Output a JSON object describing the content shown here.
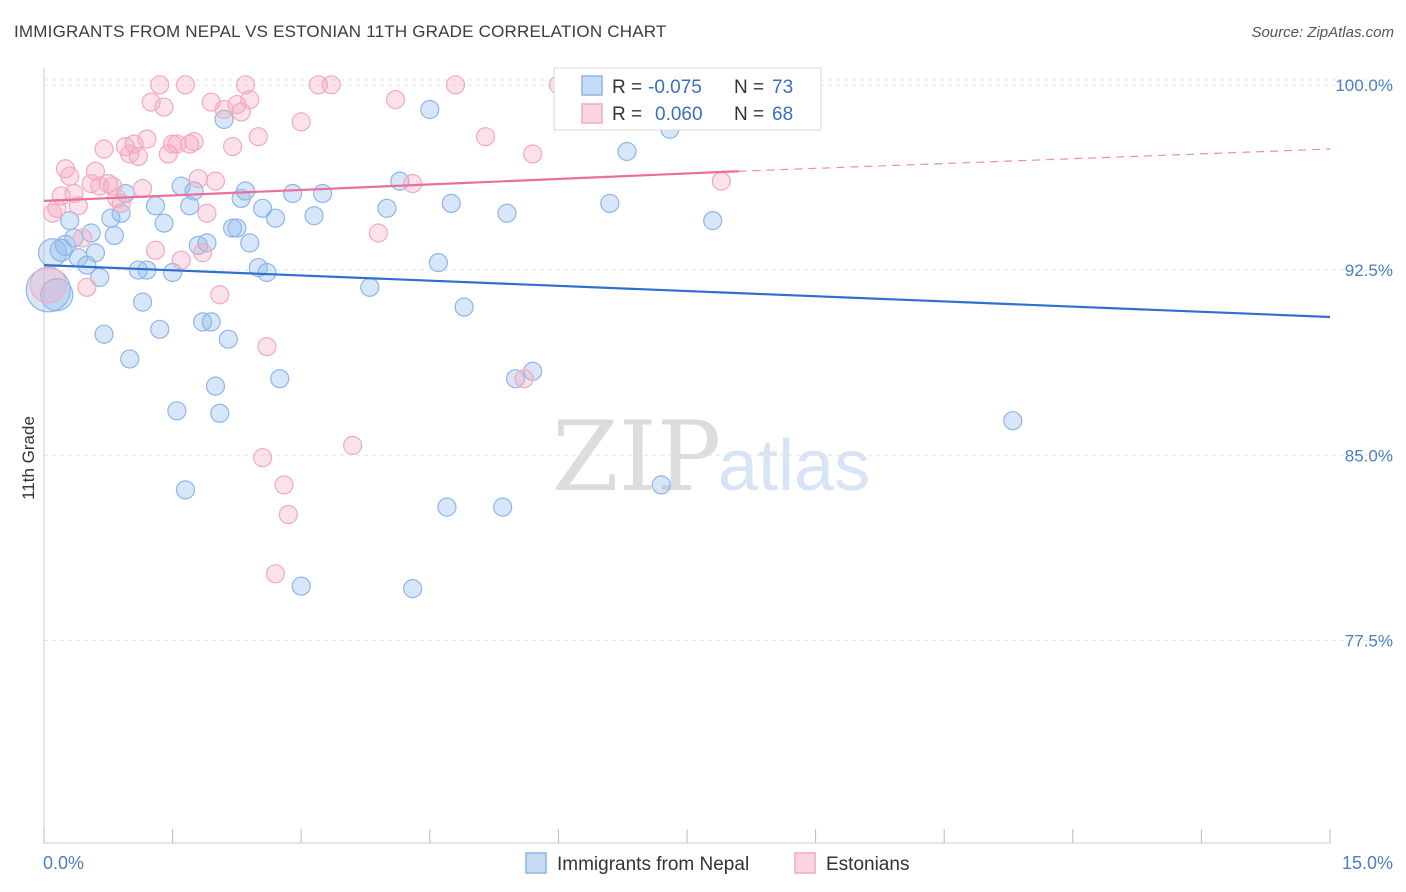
{
  "header": {
    "title": "IMMIGRANTS FROM NEPAL VS ESTONIAN 11TH GRADE CORRELATION CHART",
    "source": "Source: ZipAtlas.com"
  },
  "watermark": {
    "zip": "ZIP",
    "atlas": "atlas"
  },
  "legend": {
    "r_label": "R =",
    "n_label": "N =",
    "rows": [
      {
        "r": "-0.075",
        "n": "73",
        "color": "#8db6ea"
      },
      {
        "r": "0.060",
        "n": "68",
        "color": "#f4a9c0"
      }
    ]
  },
  "bottom_legend": [
    {
      "label": "Immigrants from Nepal",
      "color": "#8db6ea"
    },
    {
      "label": "Estonians",
      "color": "#f4a9c0"
    }
  ],
  "chart_data": {
    "type": "scatter",
    "title": "IMMIGRANTS FROM NEPAL VS ESTONIAN 11TH GRADE CORRELATION CHART",
    "xlabel": "",
    "ylabel": "11th Grade",
    "xlim": [
      0,
      15
    ],
    "ylim": [
      69.3,
      100.6
    ],
    "x_tick_labels": [
      "0.0%",
      "15.0%"
    ],
    "y_ticks": [
      77.5,
      85.0,
      92.5,
      100.0
    ],
    "y_tick_labels": [
      "77.5%",
      "85.0%",
      "92.5%",
      "100.0%"
    ],
    "grid": "horizontal dashed",
    "legend_position": "top-center",
    "series": [
      {
        "name": "Immigrants from Nepal",
        "color": "#8db6ea",
        "line_color": "#2f6fce",
        "trend": {
          "x": [
            0,
            15
          ],
          "y": [
            92.7,
            90.6
          ]
        },
        "points": [
          [
            0.05,
            91.7,
            22
          ],
          [
            0.1,
            93.2,
            14
          ],
          [
            0.15,
            91.5,
            16
          ],
          [
            0.2,
            93.3,
            11
          ],
          [
            0.25,
            93.5,
            10
          ],
          [
            0.3,
            94.5,
            9
          ],
          [
            0.35,
            93.8,
            9
          ],
          [
            0.4,
            93.0,
            9
          ],
          [
            0.5,
            92.7,
            9
          ],
          [
            0.55,
            94.0,
            9
          ],
          [
            0.6,
            93.2,
            9
          ],
          [
            0.65,
            92.2,
            9
          ],
          [
            0.7,
            89.9,
            9
          ],
          [
            0.78,
            94.6,
            9
          ],
          [
            0.82,
            93.9,
            9
          ],
          [
            0.9,
            94.8,
            9
          ],
          [
            0.95,
            95.6,
            9
          ],
          [
            1.0,
            88.9,
            9
          ],
          [
            1.1,
            92.5,
            9
          ],
          [
            1.15,
            91.2,
            9
          ],
          [
            1.2,
            92.5,
            9
          ],
          [
            1.3,
            95.1,
            9
          ],
          [
            1.35,
            90.1,
            9
          ],
          [
            1.4,
            94.4,
            9
          ],
          [
            1.5,
            92.4,
            9
          ],
          [
            1.55,
            86.8,
            9
          ],
          [
            1.6,
            95.9,
            9
          ],
          [
            1.65,
            83.6,
            9
          ],
          [
            1.7,
            95.1,
            9
          ],
          [
            1.75,
            95.7,
            9
          ],
          [
            1.8,
            93.5,
            9
          ],
          [
            1.85,
            90.4,
            9
          ],
          [
            1.9,
            93.6,
            9
          ],
          [
            1.95,
            90.4,
            9
          ],
          [
            2.0,
            87.8,
            9
          ],
          [
            2.05,
            86.7,
            9
          ],
          [
            2.1,
            98.6,
            9
          ],
          [
            2.15,
            89.7,
            9
          ],
          [
            2.2,
            94.2,
            9
          ],
          [
            2.25,
            94.2,
            9
          ],
          [
            2.3,
            95.4,
            9
          ],
          [
            2.35,
            95.7,
            9
          ],
          [
            2.4,
            93.6,
            9
          ],
          [
            2.5,
            92.6,
            9
          ],
          [
            2.55,
            95.0,
            9
          ],
          [
            2.6,
            92.4,
            9
          ],
          [
            2.7,
            94.6,
            9
          ],
          [
            2.75,
            88.1,
            9
          ],
          [
            2.9,
            95.6,
            9
          ],
          [
            3.0,
            79.7,
            9
          ],
          [
            3.15,
            94.7,
            9
          ],
          [
            3.25,
            95.6,
            9
          ],
          [
            3.8,
            91.8,
            9
          ],
          [
            4.0,
            95.0,
            9
          ],
          [
            4.15,
            96.1,
            9
          ],
          [
            4.3,
            79.6,
            9
          ],
          [
            4.5,
            99.0,
            9
          ],
          [
            4.6,
            92.8,
            9
          ],
          [
            4.7,
            82.9,
            9
          ],
          [
            4.75,
            95.2,
            9
          ],
          [
            4.9,
            91.0,
            9
          ],
          [
            5.35,
            82.9,
            9
          ],
          [
            5.4,
            94.8,
            9
          ],
          [
            5.5,
            88.1,
            9
          ],
          [
            5.7,
            88.4,
            9
          ],
          [
            6.35,
            98.9,
            9
          ],
          [
            6.6,
            95.2,
            9
          ],
          [
            6.8,
            97.3,
            9
          ],
          [
            7.2,
            83.8,
            9
          ],
          [
            7.3,
            98.2,
            9
          ],
          [
            7.8,
            94.5,
            9
          ],
          [
            11.3,
            86.4,
            9
          ],
          [
            6.1,
            100.0,
            9
          ]
        ]
      },
      {
        "name": "Estonians",
        "color": "#f4a9c0",
        "line_color": "#e8709a",
        "trend": {
          "x": [
            0,
            8.1
          ],
          "y": [
            95.3,
            96.5
          ],
          "dashed_to": [
            15,
            97.4
          ]
        },
        "points": [
          [
            0.05,
            91.9,
            18
          ],
          [
            0.1,
            94.8,
            9
          ],
          [
            0.15,
            95.0,
            9
          ],
          [
            0.2,
            95.5,
            9
          ],
          [
            0.25,
            96.6,
            9
          ],
          [
            0.3,
            96.3,
            9
          ],
          [
            0.35,
            95.6,
            9
          ],
          [
            0.4,
            95.1,
            9
          ],
          [
            0.45,
            93.8,
            9
          ],
          [
            0.5,
            91.8,
            9
          ],
          [
            0.55,
            96.0,
            9
          ],
          [
            0.6,
            96.5,
            9
          ],
          [
            0.65,
            95.9,
            9
          ],
          [
            0.7,
            97.4,
            9
          ],
          [
            0.75,
            96.0,
            9
          ],
          [
            0.8,
            95.9,
            9
          ],
          [
            0.85,
            95.4,
            9
          ],
          [
            0.9,
            95.2,
            9
          ],
          [
            0.95,
            97.5,
            9
          ],
          [
            1.0,
            97.2,
            9
          ],
          [
            1.05,
            97.6,
            9
          ],
          [
            1.1,
            97.1,
            9
          ],
          [
            1.15,
            95.8,
            9
          ],
          [
            1.2,
            97.8,
            9
          ],
          [
            1.25,
            99.3,
            9
          ],
          [
            1.3,
            93.3,
            9
          ],
          [
            1.35,
            100.0,
            9
          ],
          [
            1.4,
            99.1,
            9
          ],
          [
            1.45,
            97.2,
            9
          ],
          [
            1.5,
            97.6,
            9
          ],
          [
            1.55,
            97.6,
            9
          ],
          [
            1.6,
            92.9,
            9
          ],
          [
            1.65,
            100.0,
            9
          ],
          [
            1.7,
            97.6,
            9
          ],
          [
            1.75,
            97.7,
            9
          ],
          [
            1.8,
            96.2,
            9
          ],
          [
            1.85,
            93.2,
            9
          ],
          [
            1.9,
            94.8,
            9
          ],
          [
            1.95,
            99.3,
            9
          ],
          [
            2.0,
            96.1,
            9
          ],
          [
            2.05,
            91.5,
            9
          ],
          [
            2.1,
            99.0,
            9
          ],
          [
            2.2,
            97.5,
            9
          ],
          [
            2.25,
            99.2,
            9
          ],
          [
            2.3,
            98.9,
            9
          ],
          [
            2.35,
            100.0,
            9
          ],
          [
            2.4,
            99.4,
            9
          ],
          [
            2.5,
            97.9,
            9
          ],
          [
            2.6,
            89.4,
            9
          ],
          [
            2.55,
            84.9,
            9
          ],
          [
            2.7,
            80.2,
            9
          ],
          [
            2.8,
            83.8,
            9
          ],
          [
            2.85,
            82.6,
            9
          ],
          [
            3.0,
            98.5,
            9
          ],
          [
            3.2,
            100.0,
            9
          ],
          [
            3.35,
            100.0,
            9
          ],
          [
            3.6,
            85.4,
            9
          ],
          [
            3.9,
            94.0,
            9
          ],
          [
            4.1,
            99.4,
            9
          ],
          [
            4.3,
            96.0,
            9
          ],
          [
            4.8,
            100.0,
            9
          ],
          [
            5.15,
            97.9,
            9
          ],
          [
            5.6,
            88.1,
            9
          ],
          [
            5.7,
            97.2,
            9
          ],
          [
            6.0,
            100.0,
            9
          ],
          [
            6.2,
            100.0,
            9
          ],
          [
            7.9,
            96.1,
            9
          ],
          [
            8.1,
            100.0,
            9
          ]
        ]
      }
    ]
  }
}
